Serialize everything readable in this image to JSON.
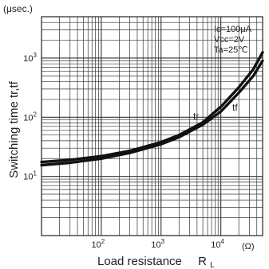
{
  "chart_data": {
    "type": "line",
    "title": "",
    "unit_label": "(μsec.)",
    "xlabel": "Load resistance",
    "xlabel_symbol": "R",
    "xlabel_subscript": "L",
    "xunit": "(Ω)",
    "ylabel": "Switching time tr,tf",
    "x_scale": "log",
    "y_scale": "log",
    "xlim": [
      10,
      50000
    ],
    "ylim": [
      1,
      5000
    ],
    "grid": true,
    "x_ticks": [
      {
        "value": 100,
        "label": "10",
        "exp": "2"
      },
      {
        "value": 1000,
        "label": "10",
        "exp": "3"
      },
      {
        "value": 10000,
        "label": "10",
        "exp": "4"
      }
    ],
    "y_ticks": [
      {
        "value": 10,
        "label": "10",
        "exp": "1"
      },
      {
        "value": 100,
        "label": "10",
        "exp": "2"
      },
      {
        "value": 1000,
        "label": "10",
        "exp": "3"
      }
    ],
    "conditions": [
      {
        "text": "Ic=100μA"
      },
      {
        "text": "Vcc=2V"
      },
      {
        "text": "Ta=25℃"
      }
    ],
    "series": [
      {
        "name": "tr",
        "x": [
          10,
          30,
          100,
          300,
          1000,
          2000,
          5000,
          10000,
          20000,
          35000,
          50000
        ],
        "y": [
          17.5,
          19,
          22,
          27,
          38,
          50,
          82,
          150,
          320,
          650,
          1250
        ]
      },
      {
        "name": "tf",
        "x": [
          10,
          30,
          100,
          300,
          1000,
          2000,
          5000,
          10000,
          20000,
          35000,
          50000
        ],
        "y": [
          15.5,
          17,
          20,
          25,
          35,
          46,
          75,
          125,
          260,
          500,
          900
        ]
      }
    ]
  }
}
